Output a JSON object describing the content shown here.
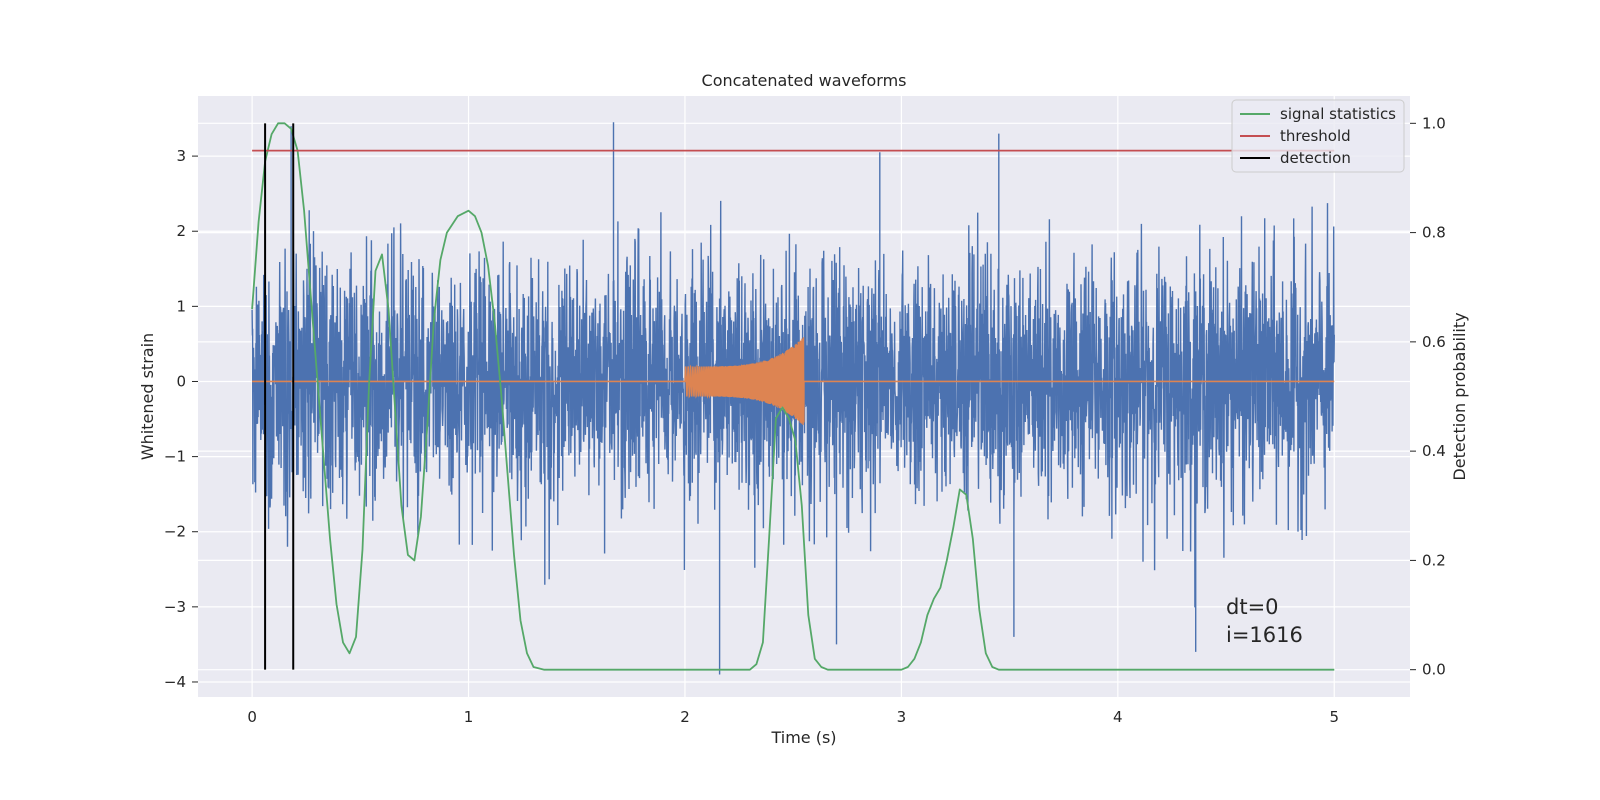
{
  "chart_data": {
    "type": "line",
    "title": "Concatenated waveforms",
    "xlabel": "Time (s)",
    "ylabel_left": "Whitened strain",
    "ylabel_right": "Detection probability",
    "xlim": [
      -0.25,
      5.35
    ],
    "ylim_left": [
      -4.2,
      3.8
    ],
    "ylim_right": [
      -0.05,
      1.05
    ],
    "xticks": [
      0,
      1,
      2,
      3,
      4,
      5
    ],
    "yticks_left": [
      3,
      2,
      1,
      0,
      -1,
      -2,
      -3,
      -4
    ],
    "yticks_right": [
      1.0,
      0.8,
      0.6,
      0.4,
      0.2,
      0.0
    ],
    "xtick_labels": [
      "0",
      "1",
      "2",
      "3",
      "4",
      "5"
    ],
    "ytick_labels_left": [
      "3",
      "2",
      "1",
      "0",
      "−1",
      "−2",
      "−3",
      "−4"
    ],
    "ytick_labels_right": [
      "1.0",
      "0.8",
      "0.6",
      "0.4",
      "0.2",
      "0.0"
    ],
    "grid": true,
    "legend_position": "top-right",
    "colors": {
      "background": "#eaeaf2",
      "grid": "#ffffff",
      "noise": "#4c72b0",
      "waveform": "#dd8452",
      "statistic": "#55a868",
      "threshold": "#c44e52",
      "detection": "#000000"
    },
    "legend": [
      {
        "label": "signal statistics",
        "color": "#55a868"
      },
      {
        "label": "threshold",
        "color": "#c44e52"
      },
      {
        "label": "detection",
        "color": "#000000"
      }
    ],
    "series": [
      {
        "name": "signal statistics",
        "axis": "right",
        "x": [
          0.0,
          0.03,
          0.06,
          0.09,
          0.12,
          0.15,
          0.18,
          0.21,
          0.24,
          0.27,
          0.3,
          0.33,
          0.36,
          0.39,
          0.42,
          0.45,
          0.48,
          0.51,
          0.54,
          0.57,
          0.6,
          0.63,
          0.66,
          0.69,
          0.72,
          0.75,
          0.78,
          0.81,
          0.84,
          0.87,
          0.9,
          0.95,
          1.0,
          1.03,
          1.06,
          1.09,
          1.12,
          1.15,
          1.18,
          1.21,
          1.24,
          1.27,
          1.3,
          1.35,
          1.5,
          2.0,
          2.3,
          2.33,
          2.36,
          2.39,
          2.42,
          2.45,
          2.48,
          2.51,
          2.54,
          2.57,
          2.6,
          2.63,
          2.66,
          2.7,
          2.8,
          3.0,
          3.03,
          3.06,
          3.09,
          3.12,
          3.15,
          3.18,
          3.21,
          3.24,
          3.27,
          3.3,
          3.33,
          3.36,
          3.39,
          3.42,
          3.45,
          3.6,
          4.0,
          4.5,
          5.0
        ],
        "values": [
          0.66,
          0.82,
          0.93,
          0.98,
          1.0,
          1.0,
          0.99,
          0.95,
          0.84,
          0.69,
          0.54,
          0.39,
          0.24,
          0.12,
          0.05,
          0.03,
          0.06,
          0.22,
          0.52,
          0.73,
          0.76,
          0.66,
          0.48,
          0.3,
          0.21,
          0.2,
          0.28,
          0.45,
          0.64,
          0.75,
          0.8,
          0.83,
          0.84,
          0.83,
          0.8,
          0.74,
          0.64,
          0.51,
          0.36,
          0.21,
          0.09,
          0.03,
          0.005,
          0.0,
          0.0,
          0.0,
          0.0,
          0.01,
          0.05,
          0.25,
          0.46,
          0.48,
          0.46,
          0.42,
          0.3,
          0.1,
          0.02,
          0.005,
          0.0,
          0.0,
          0.0,
          0.0,
          0.005,
          0.02,
          0.05,
          0.1,
          0.13,
          0.15,
          0.2,
          0.26,
          0.33,
          0.32,
          0.24,
          0.11,
          0.03,
          0.005,
          0.0,
          0.0,
          0.0,
          0.0,
          0.0
        ]
      },
      {
        "name": "threshold",
        "axis": "right",
        "x": [
          0,
          5
        ],
        "values": [
          0.95,
          0.95
        ]
      },
      {
        "name": "detection",
        "axis": "right",
        "x": [
          0.06,
          0.19
        ],
        "values": [
          1.0,
          1.0
        ]
      }
    ],
    "noise_series": {
      "axis": "left",
      "x_range": [
        0,
        5
      ],
      "std": 0.8,
      "extremes": [
        {
          "x": 0.18,
          "y": 3.4
        },
        {
          "x": 1.67,
          "y": 3.45
        },
        {
          "x": 2.9,
          "y": 3.05
        },
        {
          "x": 3.45,
          "y": 3.3
        },
        {
          "x": 2.16,
          "y": -3.9
        },
        {
          "x": 2.7,
          "y": -3.5
        },
        {
          "x": 4.36,
          "y": -3.6
        },
        {
          "x": 3.52,
          "y": -3.4
        }
      ]
    },
    "waveform_series": {
      "axis": "left",
      "x_range": [
        2.0,
        2.55
      ],
      "start_amplitude": 0.2,
      "peak_amplitude": 0.6
    },
    "annotation": [
      "dt=0",
      "i=1616"
    ]
  }
}
